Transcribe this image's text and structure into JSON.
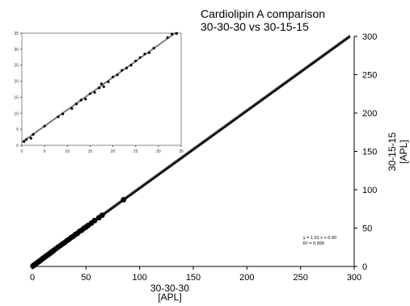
{
  "chart_data": [
    {
      "type": "scatter",
      "role": "main",
      "title_lines": [
        "Cardiolipin A comparison",
        "30-30-30 vs 30-15-15"
      ],
      "xlabel_lines": [
        "30-30-30",
        "[APL]"
      ],
      "ylabel_lines": [
        "30-15-15",
        "[APL]"
      ],
      "xlim": [
        0,
        300
      ],
      "ylim": [
        0,
        300
      ],
      "xticks": [
        0,
        50,
        100,
        150,
        200,
        250,
        300
      ],
      "yticks": [
        0,
        50,
        100,
        150,
        200,
        250,
        300
      ],
      "y_axis_side": "right",
      "grid": false,
      "fit": {
        "slope": 1.01,
        "intercept": 0.9
      },
      "annotation_lines": [
        "y = 1.01 x + 0.90",
        "R² = 0.999"
      ],
      "points": [
        {
          "x": 0.5,
          "y": 0.6
        },
        {
          "x": 1,
          "y": 1.2
        },
        {
          "x": 1.5,
          "y": 1.4
        },
        {
          "x": 2,
          "y": 2.3
        },
        {
          "x": 2.5,
          "y": 2.4
        },
        {
          "x": 3,
          "y": 3.1
        },
        {
          "x": 3.5,
          "y": 3.8
        },
        {
          "x": 4,
          "y": 4.2
        },
        {
          "x": 5,
          "y": 5.3
        },
        {
          "x": 6,
          "y": 6.1
        },
        {
          "x": 7,
          "y": 7.4
        },
        {
          "x": 8,
          "y": 8.2
        },
        {
          "x": 9,
          "y": 9.5
        },
        {
          "x": 10,
          "y": 10.8
        },
        {
          "x": 11,
          "y": 11.5
        },
        {
          "x": 12,
          "y": 12.9
        },
        {
          "x": 13,
          "y": 13.6
        },
        {
          "x": 14,
          "y": 14.8
        },
        {
          "x": 15,
          "y": 15.4
        },
        {
          "x": 16,
          "y": 16.9
        },
        {
          "x": 17,
          "y": 17.5
        },
        {
          "x": 18,
          "y": 19.0
        },
        {
          "x": 19,
          "y": 19.6
        },
        {
          "x": 20,
          "y": 21.1
        },
        {
          "x": 22,
          "y": 23.0
        },
        {
          "x": 24,
          "y": 25.2
        },
        {
          "x": 26,
          "y": 27.1
        },
        {
          "x": 28,
          "y": 29.3
        },
        {
          "x": 30,
          "y": 31.0
        },
        {
          "x": 32,
          "y": 33.4
        },
        {
          "x": 34,
          "y": 35.1
        },
        {
          "x": 36,
          "y": 37.5
        },
        {
          "x": 38,
          "y": 39.2
        },
        {
          "x": 40,
          "y": 41.6
        },
        {
          "x": 42,
          "y": 43.1
        },
        {
          "x": 44,
          "y": 45.8
        },
        {
          "x": 46,
          "y": 47.2
        },
        {
          "x": 48,
          "y": 49.7
        },
        {
          "x": 50,
          "y": 51.4
        },
        {
          "x": 52,
          "y": 53.5
        },
        {
          "x": 55,
          "y": 56.4
        },
        {
          "x": 58,
          "y": 59.8
        },
        {
          "x": 62,
          "y": 63.5
        },
        {
          "x": 65,
          "y": 66.7
        },
        {
          "x": 85,
          "y": 87.0
        }
      ]
    },
    {
      "type": "scatter",
      "role": "inset",
      "xlim": [
        0,
        35
      ],
      "ylim": [
        0,
        35
      ],
      "xticks": [
        0,
        5,
        10,
        15,
        20,
        25,
        30,
        35
      ],
      "yticks": [
        0,
        5,
        10,
        15,
        20,
        25,
        30,
        35
      ],
      "grid": false,
      "fit": {
        "slope": 1.01,
        "intercept": 0.9
      },
      "points": [
        {
          "x": 0.5,
          "y": 1.2
        },
        {
          "x": 1,
          "y": 1.8
        },
        {
          "x": 2,
          "y": 2.2
        },
        {
          "x": 2.5,
          "y": 3.4
        },
        {
          "x": 5,
          "y": 6.0
        },
        {
          "x": 8,
          "y": 8.9
        },
        {
          "x": 9,
          "y": 9.8
        },
        {
          "x": 11,
          "y": 11.5
        },
        {
          "x": 12,
          "y": 12.9
        },
        {
          "x": 13,
          "y": 14.1
        },
        {
          "x": 14,
          "y": 14.4
        },
        {
          "x": 15,
          "y": 16.1
        },
        {
          "x": 16,
          "y": 16.5
        },
        {
          "x": 17,
          "y": 17.9
        },
        {
          "x": 17.5,
          "y": 19.2
        },
        {
          "x": 18,
          "y": 18.3
        },
        {
          "x": 19,
          "y": 19.8
        },
        {
          "x": 20,
          "y": 21.3
        },
        {
          "x": 21,
          "y": 22.0
        },
        {
          "x": 22,
          "y": 23.4
        },
        {
          "x": 23,
          "y": 24.1
        },
        {
          "x": 24,
          "y": 25.0
        },
        {
          "x": 25,
          "y": 26.3
        },
        {
          "x": 26,
          "y": 27.4
        },
        {
          "x": 27,
          "y": 28.5
        },
        {
          "x": 28,
          "y": 28.9
        },
        {
          "x": 29,
          "y": 30.3
        },
        {
          "x": 32,
          "y": 33.6
        },
        {
          "x": 33,
          "y": 34.7
        },
        {
          "x": 34,
          "y": 34.9
        }
      ]
    }
  ]
}
